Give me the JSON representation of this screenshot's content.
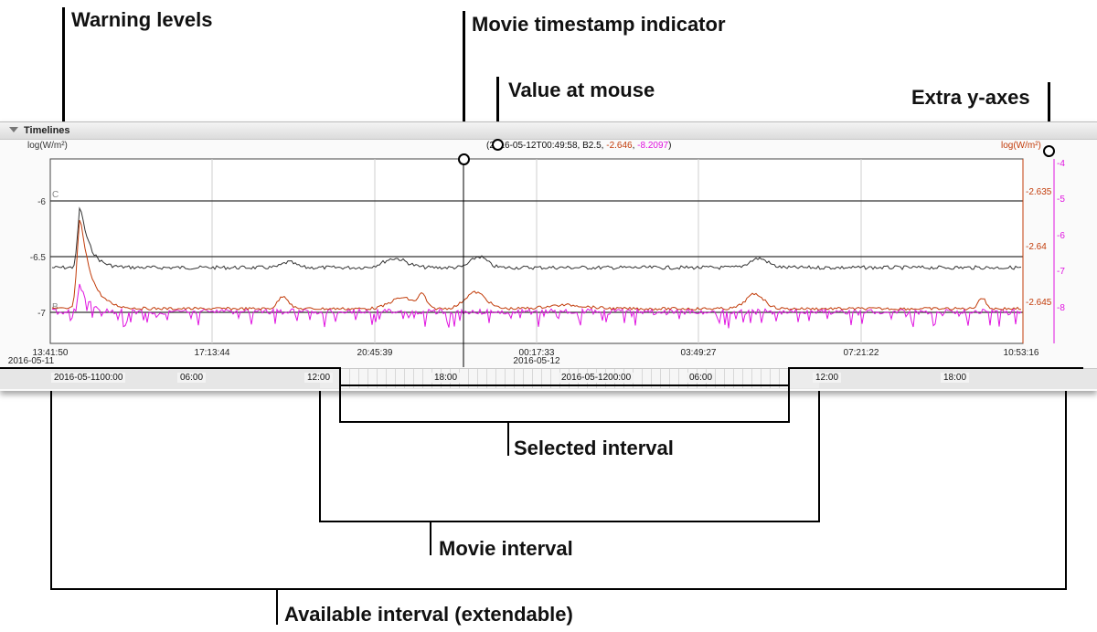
{
  "callouts": {
    "warning_levels": "Warning levels",
    "movie_timestamp": "Movie timestamp indicator",
    "value_at_mouse": "Value at mouse",
    "extra_y_axes": "Extra y-axes",
    "selected_interval": "Selected interval",
    "movie_interval": "Movie interval",
    "available_interval": "Available interval (extendable)"
  },
  "panel": {
    "title": "Timelines",
    "y_label_left": "log(W/m²)",
    "y_label_right": "log(W/m²)",
    "mouse_readout": {
      "open": "(",
      "time": "2016-05-12T00:49:58",
      "flare": "B2.5",
      "v1": "-2.646",
      "v2": "-8.2097",
      "close": ")"
    },
    "left_ticks": [
      "-6",
      "-6.5",
      "-7"
    ],
    "right_ticks_a": [
      "-2.635",
      "-2.64",
      "-2.645"
    ],
    "right_ticks_b": [
      "-4",
      "-5",
      "-6",
      "-7",
      "-8"
    ],
    "warning_letters": [
      "C",
      "B"
    ],
    "x_ticks": [
      "13:41:50",
      "17:13:44",
      "20:45:39",
      "00:17:33",
      "03:49:27",
      "07:21:22",
      "10:53:16"
    ],
    "x_dates": [
      "2016-05-11",
      "2016-05-12"
    ]
  },
  "timebar": {
    "labels": [
      "2016-05-1100:00",
      "06:00",
      "12:00",
      "18:00",
      "2016-05-1200:00",
      "06:00",
      "12:00",
      "18:00"
    ]
  },
  "colors": {
    "black_series": "#333333",
    "red_series": "#c23c0a",
    "magenta_series": "#e014e0",
    "red_axis": "#c23c0a",
    "magenta_axis": "#e014e0"
  }
}
